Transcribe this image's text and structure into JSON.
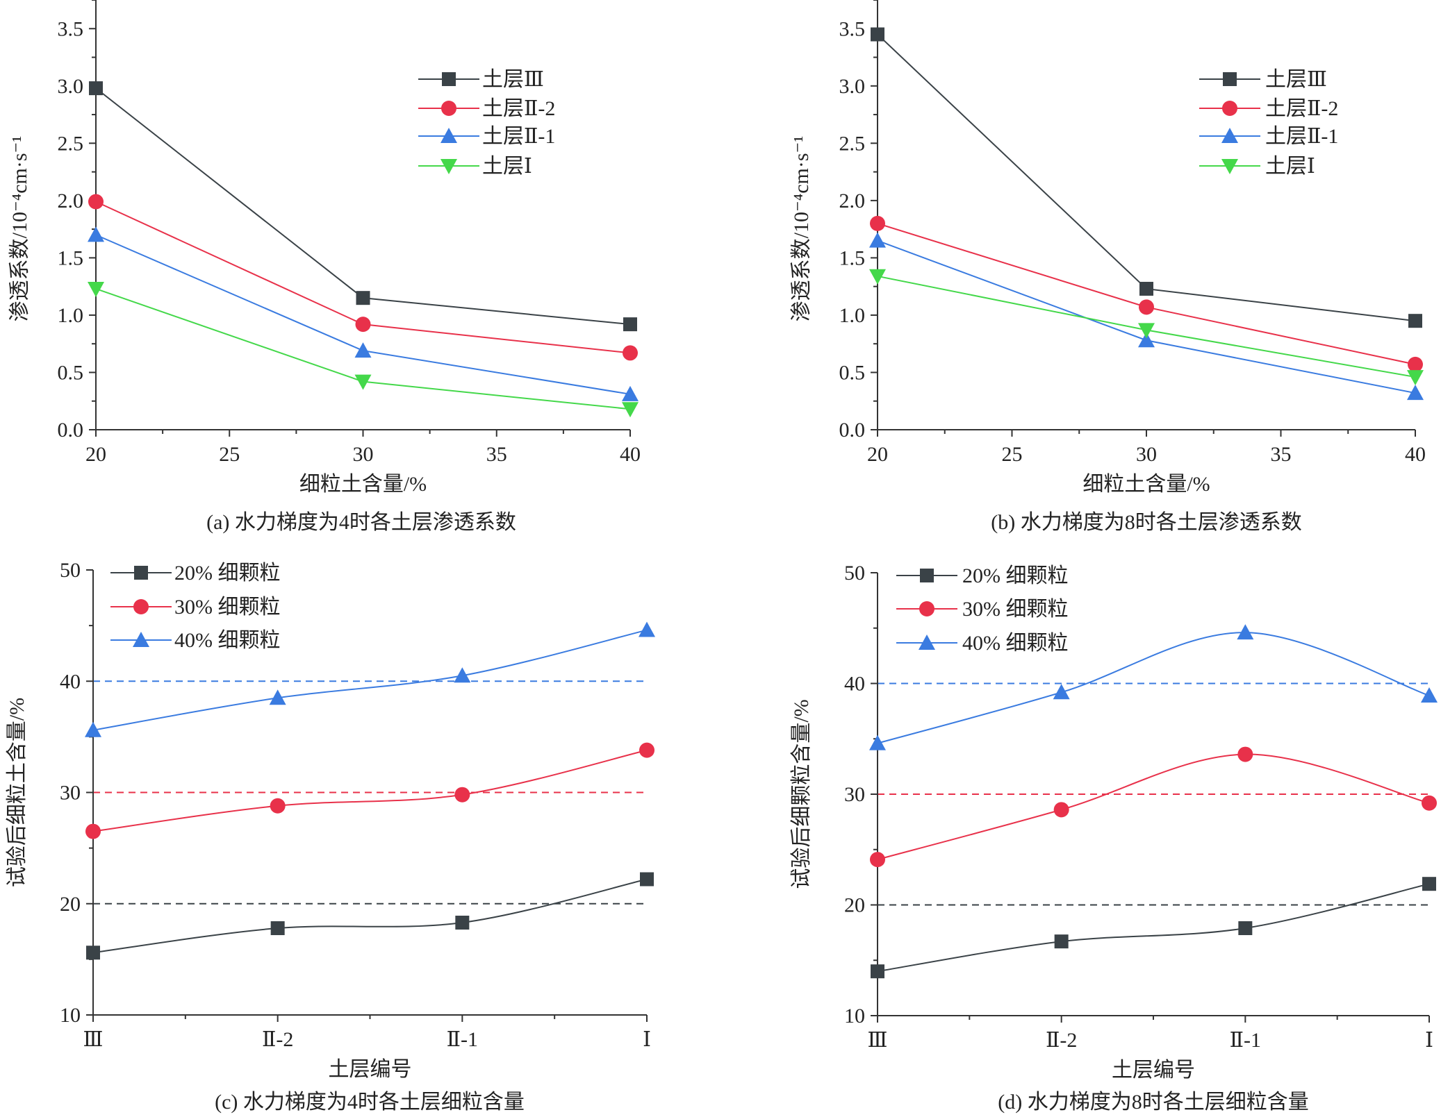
{
  "chart_data": [
    {
      "type": "line",
      "caption": "(a) 水力梯度为4时各土层渗透系数",
      "xlabel": "细粒土含量/%",
      "ylabel": "渗透系数/10⁻⁴cm·s⁻¹",
      "x": [
        20,
        30,
        40
      ],
      "xlim": [
        20,
        40
      ],
      "xticks": [
        "20",
        "25",
        "30",
        "35",
        "40"
      ],
      "ylim": [
        0,
        3.75
      ],
      "yticks": [
        "0.0",
        "0.5",
        "1.0",
        "1.5",
        "2.0",
        "2.5",
        "3.0",
        "3.5"
      ],
      "legend": "top-right",
      "series": [
        {
          "name": "土层Ⅲ",
          "values": [
            2.98,
            1.15,
            0.92
          ],
          "color": "#3a4247",
          "marker": "square"
        },
        {
          "name": "土层Ⅱ-2",
          "values": [
            1.99,
            0.92,
            0.67
          ],
          "color": "#e8314a",
          "marker": "circle"
        },
        {
          "name": "土层Ⅱ-1",
          "values": [
            1.7,
            0.69,
            0.31
          ],
          "color": "#3a7be0",
          "marker": "triangle-up"
        },
        {
          "name": "土层Ⅰ",
          "values": [
            1.23,
            0.42,
            0.18
          ],
          "color": "#44d84a",
          "marker": "triangle-down"
        }
      ]
    },
    {
      "type": "line",
      "caption": "(b) 水力梯度为8时各土层渗透系数",
      "xlabel": "细粒土含量/%",
      "ylabel": "渗透系数/10⁻⁴cm·s⁻¹",
      "x": [
        20,
        30,
        40
      ],
      "xlim": [
        20,
        40
      ],
      "xticks": [
        "20",
        "25",
        "30",
        "35",
        "40"
      ],
      "ylim": [
        0,
        3.75
      ],
      "yticks": [
        "0.0",
        "0.5",
        "1.0",
        "1.5",
        "2.0",
        "2.5",
        "3.0",
        "3.5"
      ],
      "legend": "top-right",
      "series": [
        {
          "name": "土层Ⅲ",
          "values": [
            3.45,
            1.23,
            0.95
          ],
          "color": "#3a4247",
          "marker": "square"
        },
        {
          "name": "土层Ⅱ-2",
          "values": [
            1.8,
            1.07,
            0.57
          ],
          "color": "#e8314a",
          "marker": "circle"
        },
        {
          "name": "土层Ⅱ-1",
          "values": [
            1.65,
            0.78,
            0.32
          ],
          "color": "#3a7be0",
          "marker": "triangle-up"
        },
        {
          "name": "土层Ⅰ",
          "values": [
            1.34,
            0.87,
            0.46
          ],
          "color": "#44d84a",
          "marker": "triangle-down"
        }
      ]
    },
    {
      "type": "line",
      "caption": "(c) 水力梯度为4时各土层细粒含量",
      "xlabel": "土层编号",
      "ylabel": "试验后细粒土含量/%",
      "categories": [
        "Ⅲ",
        "Ⅱ-2",
        "Ⅱ-1",
        "Ⅰ"
      ],
      "ylim": [
        10,
        50
      ],
      "yticks": [
        "10",
        "20",
        "30",
        "40",
        "50"
      ],
      "legend": "top-left",
      "smooth": true,
      "reference_lines": [
        20,
        30,
        40
      ],
      "series": [
        {
          "name": "20% 细颗粒",
          "values": [
            15.6,
            17.8,
            18.3,
            22.2
          ],
          "color": "#3a4247",
          "marker": "square"
        },
        {
          "name": "30% 细颗粒",
          "values": [
            26.5,
            28.8,
            29.8,
            33.8
          ],
          "color": "#e8314a",
          "marker": "circle"
        },
        {
          "name": "40% 细颗粒",
          "values": [
            35.6,
            38.5,
            40.5,
            44.6
          ],
          "color": "#3a7be0",
          "marker": "triangle-up"
        }
      ]
    },
    {
      "type": "line",
      "caption": "(d) 水力梯度为8时各土层细粒含量",
      "xlabel": "土层编号",
      "ylabel": "试验后细颗粒含量/%",
      "categories": [
        "Ⅲ",
        "Ⅱ-2",
        "Ⅱ-1",
        "Ⅰ"
      ],
      "ylim": [
        10,
        50
      ],
      "yticks": [
        "10",
        "20",
        "30",
        "40",
        "50"
      ],
      "legend": "top-left",
      "smooth": true,
      "reference_lines": [
        20,
        30,
        40
      ],
      "series": [
        {
          "name": "20% 细颗粒",
          "values": [
            14.0,
            16.7,
            17.9,
            21.9
          ],
          "color": "#3a4247",
          "marker": "square"
        },
        {
          "name": "30% 细颗粒",
          "values": [
            24.1,
            28.6,
            33.6,
            29.2
          ],
          "color": "#e8314a",
          "marker": "circle"
        },
        {
          "name": "40% 细颗粒",
          "values": [
            34.6,
            39.2,
            44.6,
            38.9
          ],
          "color": "#3a7be0",
          "marker": "triangle-up"
        }
      ]
    }
  ]
}
